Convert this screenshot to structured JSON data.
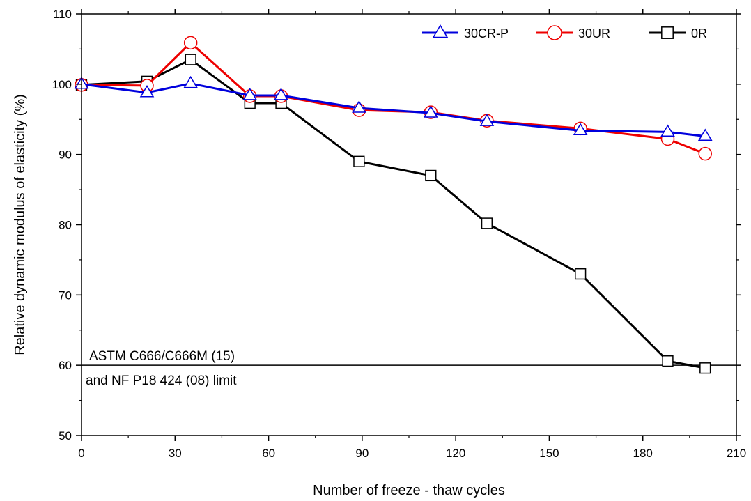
{
  "chart_data": {
    "type": "line",
    "title": "",
    "xlabel": "Number of freeze - thaw cycles",
    "ylabel": "Relative dynamic modulus of elasticity (%)",
    "xlim": [
      0,
      210
    ],
    "ylim": [
      50,
      110
    ],
    "xticks": [
      0,
      30,
      60,
      90,
      120,
      150,
      180,
      210
    ],
    "yticks": [
      50,
      60,
      70,
      80,
      90,
      100,
      110
    ],
    "grid": false,
    "legend_position": "top-right",
    "series": [
      {
        "name": "30CR-P",
        "color": "#0000dd",
        "marker": "triangle",
        "points": [
          [
            0,
            100
          ],
          [
            21,
            98.8
          ],
          [
            35,
            100.1
          ],
          [
            54,
            98.4
          ],
          [
            64,
            98.4
          ],
          [
            89,
            96.6
          ],
          [
            112,
            95.9
          ],
          [
            130,
            94.7
          ],
          [
            160,
            93.4
          ],
          [
            188,
            93.2
          ],
          [
            200,
            92.6
          ]
        ]
      },
      {
        "name": "30UR",
        "color": "#ee0000",
        "marker": "circle",
        "points": [
          [
            0,
            99.9
          ],
          [
            21,
            99.8
          ],
          [
            35,
            105.9
          ],
          [
            54,
            98.3
          ],
          [
            64,
            98.3
          ],
          [
            89,
            96.3
          ],
          [
            112,
            96.0
          ],
          [
            130,
            94.8
          ],
          [
            160,
            93.7
          ],
          [
            188,
            92.2
          ],
          [
            200,
            90.1
          ]
        ]
      },
      {
        "name": "0R",
        "color": "#000000",
        "marker": "square",
        "points": [
          [
            0,
            99.9
          ],
          [
            21,
            100.4
          ],
          [
            35,
            103.5
          ],
          [
            54,
            97.3
          ],
          [
            64,
            97.3
          ],
          [
            89,
            89.0
          ],
          [
            112,
            87.0
          ],
          [
            130,
            80.2
          ],
          [
            160,
            73.0
          ],
          [
            188,
            60.6
          ],
          [
            200,
            59.6
          ]
        ]
      }
    ],
    "limit_line": {
      "value": 60,
      "label_line1": "ASTM C666/C666M (15)",
      "label_line2": "and NF P18 424 (08) limit"
    }
  }
}
